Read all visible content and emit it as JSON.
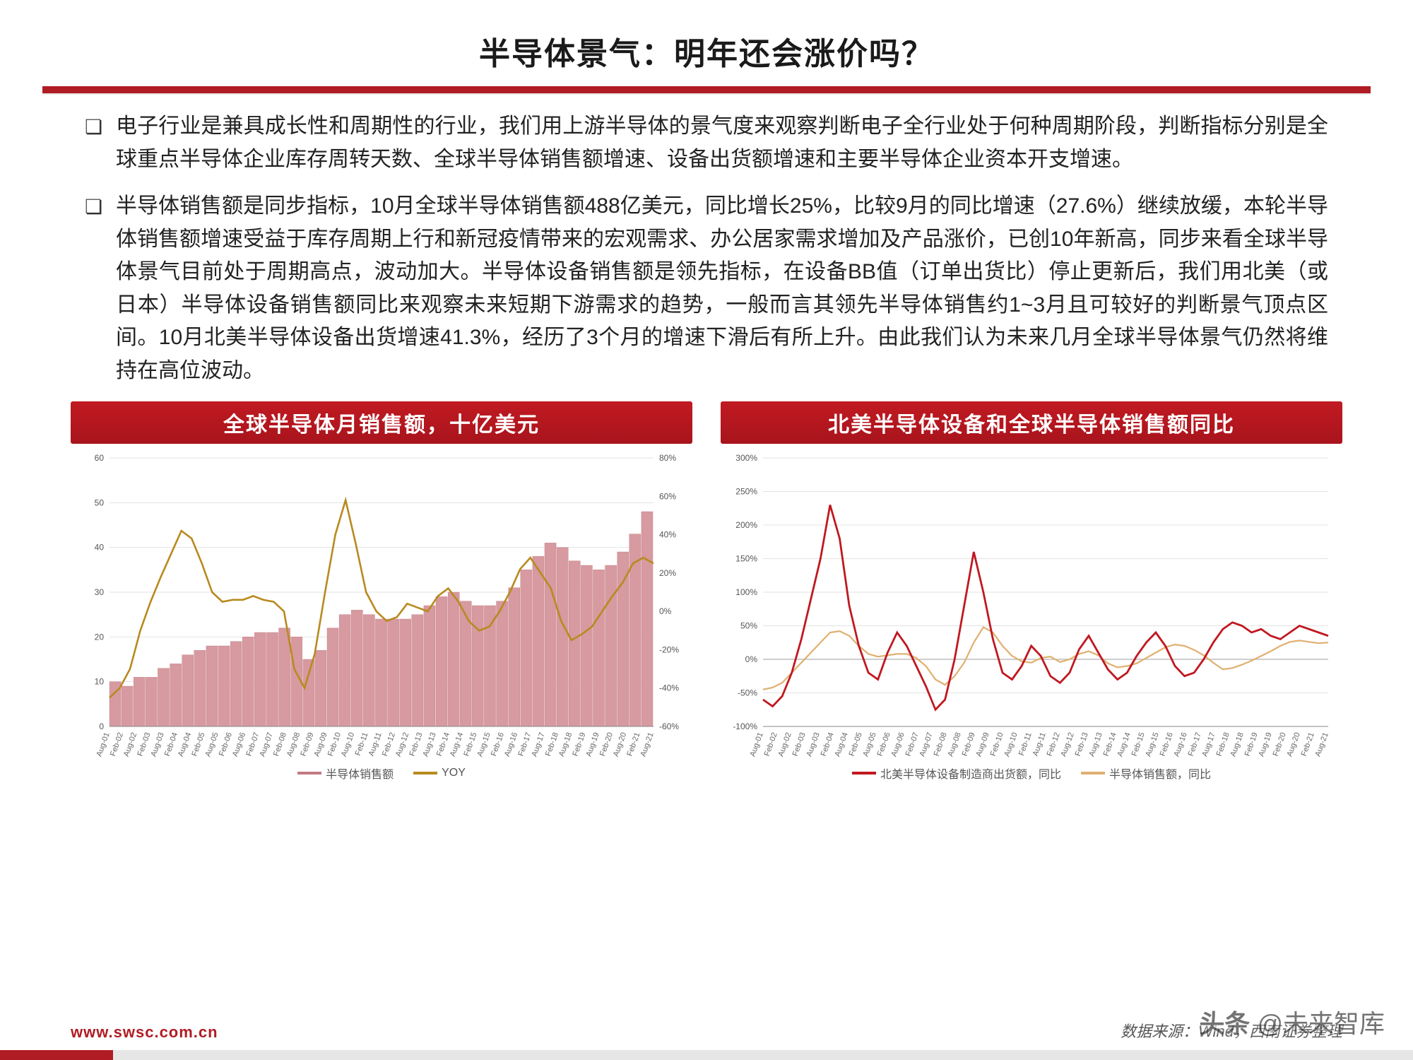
{
  "title": "半导体景气：明年还会涨价吗？",
  "bullets": [
    "电子行业是兼具成长性和周期性的行业，我们用上游半导体的景气度来观察判断电子全行业处于何种周期阶段，判断指标分别是全球重点半导体企业库存周转天数、全球半导体销售额增速、设备出货额增速和主要半导体企业资本开支增速。",
    "半导体销售额是同步指标，10月全球半导体销售额488亿美元，同比增长25%，比较9月的同比增速（27.6%）继续放缓，本轮半导体销售额增速受益于库存周期上行和新冠疫情带来的宏观需求、办公居家需求增加及产品涨价，已创10年新高，同步来看全球半导体景气目前处于周期高点，波动加大。半导体设备销售额是领先指标，在设备BB值（订单出货比）停止更新后，我们用北美（或日本）半导体设备销售额同比来观察未来短期下游需求的趋势，一般而言其领先半导体销售约1~3月且可较好的判断景气顶点区间。10月北美半导体设备出货增速41.3%，经历了3个月的增速下滑后有所上升。由此我们认为未来几月全球半导体景气仍然将维持在高位波动。"
  ],
  "colors": {
    "accent": "#b01c24",
    "bar_fill": "#d69aa0",
    "bar_stroke": "#c27a82",
    "line_yoy": "#b88a1f",
    "line_equip": "#c01820",
    "line_sales": "#e0b070",
    "grid": "#e3e3e3",
    "zero": "#bdbdbd",
    "axis": "#888888"
  },
  "chart_left": {
    "title": "全球半导体月销售额，十亿美元",
    "legend": [
      {
        "label": "半导体销售额",
        "color": "#c27a82"
      },
      {
        "label": "YOY",
        "color": "#b88a1f"
      }
    ],
    "left_axis": {
      "min": 0,
      "max": 60,
      "step": 10,
      "unit": ""
    },
    "right_axis": {
      "min": -60,
      "max": 80,
      "step": 20,
      "unit": "%"
    },
    "x_labels": [
      "Aug-01",
      "Feb-02",
      "Aug-02",
      "Feb-03",
      "Aug-03",
      "Feb-04",
      "Aug-04",
      "Feb-05",
      "Aug-05",
      "Feb-06",
      "Aug-06",
      "Feb-07",
      "Aug-07",
      "Feb-08",
      "Aug-08",
      "Feb-09",
      "Aug-09",
      "Feb-10",
      "Aug-10",
      "Feb-11",
      "Aug-11",
      "Feb-12",
      "Aug-12",
      "Feb-13",
      "Aug-13",
      "Feb-14",
      "Aug-14",
      "Feb-15",
      "Aug-15",
      "Feb-16",
      "Aug-16",
      "Feb-17",
      "Aug-17",
      "Feb-18",
      "Aug-18",
      "Feb-19",
      "Aug-19",
      "Feb-20",
      "Aug-20",
      "Feb-21",
      "Aug-21"
    ],
    "bars": [
      10,
      9,
      11,
      11,
      13,
      14,
      16,
      17,
      18,
      18,
      19,
      20,
      21,
      21,
      22,
      20,
      15,
      17,
      22,
      25,
      26,
      25,
      24,
      24,
      24,
      25,
      27,
      29,
      30,
      28,
      27,
      27,
      28,
      31,
      35,
      38,
      41,
      40,
      37,
      36,
      35,
      36,
      39,
      43,
      48
    ],
    "yoy": [
      -45,
      -40,
      -30,
      -10,
      5,
      18,
      30,
      42,
      38,
      25,
      10,
      5,
      6,
      6,
      8,
      6,
      5,
      0,
      -30,
      -40,
      -22,
      10,
      40,
      58,
      35,
      10,
      0,
      -5,
      -3,
      4,
      2,
      0,
      8,
      12,
      5,
      -5,
      -10,
      -8,
      0,
      10,
      22,
      28,
      20,
      12,
      -5,
      -15,
      -12,
      -8,
      0,
      8,
      15,
      25,
      28,
      25
    ]
  },
  "chart_right": {
    "title": "北美半导体设备和全球半导体销售额同比",
    "legend": [
      {
        "label": "北美半导体设备制造商出货额，同比",
        "color": "#c01820"
      },
      {
        "label": "半导体销售额，同比",
        "color": "#e0b070"
      }
    ],
    "y_axis": {
      "min": -100,
      "max": 300,
      "step": 50,
      "unit": "%"
    },
    "equip": [
      -60,
      -70,
      -55,
      -20,
      30,
      90,
      150,
      230,
      180,
      80,
      20,
      -20,
      -30,
      10,
      40,
      20,
      -10,
      -40,
      -75,
      -60,
      0,
      80,
      160,
      100,
      30,
      -20,
      -30,
      -10,
      20,
      5,
      -25,
      -35,
      -20,
      15,
      35,
      10,
      -15,
      -30,
      -20,
      5,
      25,
      40,
      20,
      -10,
      -25,
      -20,
      0,
      25,
      45,
      55,
      50,
      40,
      45,
      35,
      30,
      40,
      50,
      45,
      40,
      35
    ],
    "sales": [
      -45,
      -42,
      -35,
      -20,
      -5,
      10,
      25,
      40,
      42,
      35,
      20,
      8,
      4,
      6,
      8,
      8,
      2,
      -10,
      -30,
      -38,
      -25,
      -5,
      25,
      48,
      40,
      20,
      5,
      -3,
      -5,
      2,
      4,
      -4,
      0,
      8,
      12,
      6,
      -6,
      -12,
      -10,
      -6,
      2,
      10,
      18,
      22,
      20,
      14,
      6,
      -5,
      -15,
      -13,
      -8,
      -2,
      5,
      12,
      20,
      26,
      28,
      26,
      24,
      25
    ]
  },
  "footer": {
    "url": "www.swsc.com.cn",
    "source": "数据来源：Wind，西南证券整理"
  },
  "watermark": {
    "prefix": "头条",
    "handle": "@未来智库"
  }
}
